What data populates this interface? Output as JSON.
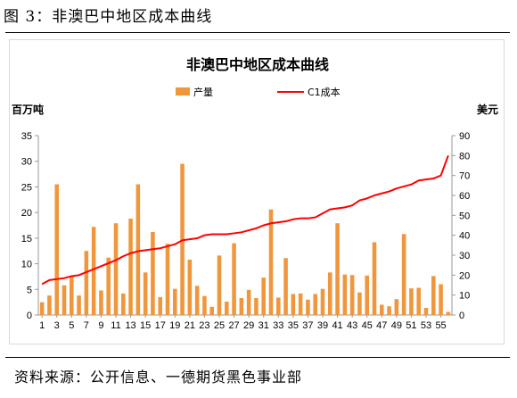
{
  "figure": {
    "label": "图 3：非澳巴中地区成本曲线",
    "source": "资料来源：公开信息、一德期货黑色事业部"
  },
  "colors": {
    "bar": "#F0963C",
    "line": "#FF0000",
    "axis": "#999999"
  },
  "chart_data": {
    "type": "bar",
    "title": "非澳巴中地区成本曲线",
    "ylabel_left": "百万吨",
    "ylabel_right": "美元",
    "ylim_left": [
      0,
      35
    ],
    "ylim_right": [
      0,
      90
    ],
    "yticks_left": [
      0,
      5,
      10,
      15,
      20,
      25,
      30,
      35
    ],
    "yticks_right": [
      0,
      10,
      20,
      30,
      40,
      50,
      60,
      70,
      80,
      90
    ],
    "xtick_labels": [
      "1",
      "3",
      "5",
      "7",
      "9",
      "11",
      "13",
      "15",
      "17",
      "19",
      "21",
      "23",
      "25",
      "27",
      "29",
      "31",
      "33",
      "35",
      "37",
      "39",
      "41",
      "43",
      "45",
      "47",
      "49",
      "51",
      "53",
      "55"
    ],
    "legend": {
      "position": "top",
      "items": [
        "产量",
        "C1成本"
      ]
    },
    "grid": false,
    "categories": [
      1,
      2,
      3,
      4,
      5,
      6,
      7,
      8,
      9,
      10,
      11,
      12,
      13,
      14,
      15,
      16,
      17,
      18,
      19,
      20,
      21,
      22,
      23,
      24,
      25,
      26,
      27,
      28,
      29,
      30,
      31,
      32,
      33,
      34,
      35,
      36,
      37,
      38,
      39,
      40,
      41,
      42,
      43,
      44,
      45,
      46,
      47,
      48,
      49,
      50,
      51,
      52,
      53,
      54,
      55,
      56
    ],
    "series": [
      {
        "name": "产量",
        "axis": "left",
        "type": "bar",
        "values": [
          2.5,
          3.8,
          25.5,
          5.8,
          7.5,
          3.8,
          12.5,
          17.2,
          4.8,
          11.2,
          17.9,
          4.2,
          18.8,
          25.5,
          8.3,
          16.2,
          3.5,
          13.9,
          5.1,
          29.5,
          10.8,
          5.7,
          3.7,
          1.6,
          11.6,
          2.6,
          14.0,
          3.3,
          4.9,
          3.3,
          7.3,
          20.6,
          3.4,
          11.1,
          4.1,
          4.2,
          3.0,
          4.1,
          5.1,
          8.3,
          17.9,
          7.9,
          7.8,
          4.4,
          7.7,
          14.2,
          2.0,
          1.7,
          3.1,
          15.8,
          5.2,
          5.3,
          1.4,
          7.6,
          6.0,
          0.6
        ]
      },
      {
        "name": "C1成本",
        "axis": "right",
        "type": "line",
        "values": [
          15.5,
          17.5,
          18.0,
          18.5,
          19.5,
          20.0,
          21.5,
          23.0,
          24.5,
          26.0,
          27.5,
          29.5,
          31.0,
          32.0,
          32.5,
          33.0,
          33.5,
          34.5,
          35.5,
          37.5,
          38.0,
          38.5,
          40.0,
          40.5,
          40.5,
          40.5,
          41.0,
          41.5,
          42.5,
          43.5,
          45.0,
          46.0,
          46.5,
          47.0,
          48.0,
          48.5,
          48.5,
          49.0,
          51.0,
          53.0,
          53.5,
          54.0,
          55.0,
          57.5,
          58.5,
          60.0,
          61.0,
          62.0,
          63.5,
          64.5,
          65.5,
          67.5,
          68.0,
          68.5,
          70.0,
          80.0
        ]
      }
    ]
  }
}
